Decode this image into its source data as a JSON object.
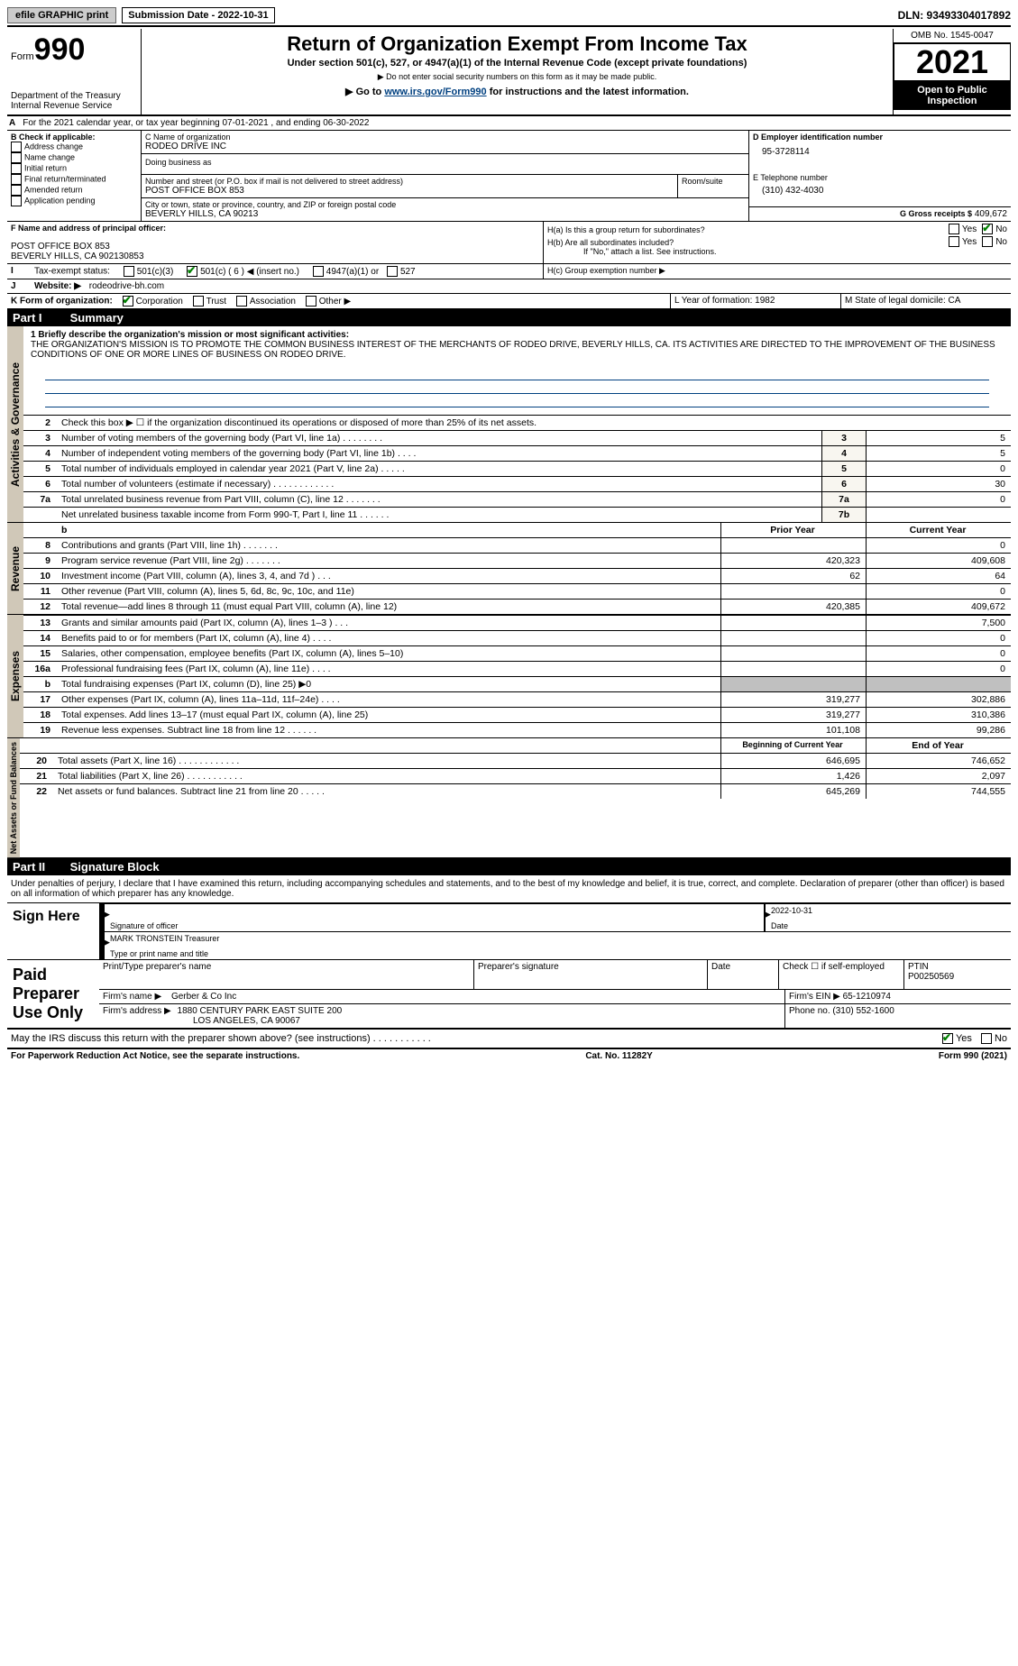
{
  "topbar": {
    "efile": "efile GRAPHIC print",
    "submission_label": "Submission Date - 2022-10-31",
    "dln": "DLN: 93493304017892"
  },
  "header": {
    "form_word": "Form",
    "form_no": "990",
    "dept": "Department of the Treasury",
    "irs": "Internal Revenue Service",
    "title": "Return of Organization Exempt From Income Tax",
    "subtitle": "Under section 501(c), 527, or 4947(a)(1) of the Internal Revenue Code (except private foundations)",
    "note1": "▶ Do not enter social security numbers on this form as it may be made public.",
    "note2_prefix": "▶ Go to ",
    "note2_link": "www.irs.gov/Form990",
    "note2_suffix": " for instructions and the latest information.",
    "omb": "OMB No. 1545-0047",
    "year": "2021",
    "open": "Open to Public Inspection"
  },
  "A": {
    "text": "For the 2021 calendar year, or tax year beginning 07-01-2021    , and ending 06-30-2022"
  },
  "B": {
    "label": "B Check if applicable:",
    "items": [
      "Address change",
      "Name change",
      "Initial return",
      "Final return/terminated",
      "Amended return",
      "Application pending"
    ]
  },
  "C": {
    "name_label": "C Name of organization",
    "org_name": "RODEO DRIVE INC",
    "dba_label": "Doing business as",
    "addr_label": "Number and street (or P.O. box if mail is not delivered to street address)",
    "room_label": "Room/suite",
    "addr": "POST OFFICE BOX 853",
    "city_label": "City or town, state or province, country, and ZIP or foreign postal code",
    "city": "BEVERLY HILLS, CA  90213"
  },
  "D": {
    "label": "D Employer identification number",
    "value": "95-3728114"
  },
  "E": {
    "label": "E Telephone number",
    "value": "(310) 432-4030"
  },
  "G": {
    "label": "G Gross receipts $",
    "value": "409,672"
  },
  "F": {
    "label": "F Name and address of principal officer:",
    "line1": "POST OFFICE BOX 853",
    "line2": "BEVERLY HILLS, CA  902130853"
  },
  "H": {
    "a_label": "H(a)  Is this a group return for subordinates?",
    "b_label": "H(b)  Are all subordinates included?",
    "b_note": "If \"No,\" attach a list. See instructions.",
    "c_label": "H(c)  Group exemption number ▶",
    "yes": "Yes",
    "no": "No"
  },
  "I": {
    "label": "Tax-exempt status:",
    "o1": "501(c)(3)",
    "o2": "501(c) ( 6 ) ◀ (insert no.)",
    "o3": "4947(a)(1) or",
    "o4": "527"
  },
  "J": {
    "label": "Website: ▶",
    "value": "rodeodrive-bh.com"
  },
  "K": {
    "label": "K Form of organization:",
    "opts": [
      "Corporation",
      "Trust",
      "Association",
      "Other ▶"
    ]
  },
  "L": {
    "label": "L Year of formation: 1982"
  },
  "M": {
    "label": "M State of legal domicile: CA"
  },
  "partI": {
    "part": "Part I",
    "title": "Summary"
  },
  "partII": {
    "part": "Part II",
    "title": "Signature Block"
  },
  "summary": {
    "l1_label": "1 Briefly describe the organization's mission or most significant activities:",
    "mission": "THE ORGANIZATION'S MISSION IS TO PROMOTE THE COMMON BUSINESS INTEREST OF THE MERCHANTS OF RODEO DRIVE, BEVERLY HILLS, CA. ITS ACTIVITIES ARE DIRECTED TO THE IMPROVEMENT OF THE BUSINESS CONDITIONS OF ONE OR MORE LINES OF BUSINESS ON RODEO DRIVE.",
    "l2": "Check this box ▶ ☐ if the organization discontinued its operations or disposed of more than 25% of its net assets.",
    "lines_gov": [
      {
        "n": "3",
        "d": "Number of voting members of the governing body (Part VI, line 1a)   .   .   .   .   .   .   .   .",
        "box": "3",
        "v": "5"
      },
      {
        "n": "4",
        "d": "Number of independent voting members of the governing body (Part VI, line 1b)   .   .   .   .",
        "box": "4",
        "v": "5"
      },
      {
        "n": "5",
        "d": "Total number of individuals employed in calendar year 2021 (Part V, line 2a)   .   .   .   .   .",
        "box": "5",
        "v": "0"
      },
      {
        "n": "6",
        "d": "Total number of volunteers (estimate if necessary)   .   .   .   .   .   .   .   .   .   .   .   .",
        "box": "6",
        "v": "30"
      },
      {
        "n": "7a",
        "d": "Total unrelated business revenue from Part VIII, column (C), line 12   .   .   .   .   .   .   .",
        "box": "7a",
        "v": "0"
      },
      {
        "n": "",
        "d": "Net unrelated business taxable income from Form 990-T, Part I, line 11   .   .   .   .   .   .",
        "box": "7b",
        "v": ""
      }
    ],
    "b_hdr": "b",
    "prior": "Prior Year",
    "current": "Current Year",
    "lines_rev": [
      {
        "n": "8",
        "d": "Contributions and grants (Part VIII, line 1h)   .   .   .   .   .   .   .",
        "p": "",
        "c": "0"
      },
      {
        "n": "9",
        "d": "Program service revenue (Part VIII, line 2g)   .   .   .   .   .   .   .",
        "p": "420,323",
        "c": "409,608"
      },
      {
        "n": "10",
        "d": "Investment income (Part VIII, column (A), lines 3, 4, and 7d )   .   .   .",
        "p": "62",
        "c": "64"
      },
      {
        "n": "11",
        "d": "Other revenue (Part VIII, column (A), lines 5, 6d, 8c, 9c, 10c, and 11e)",
        "p": "",
        "c": "0"
      },
      {
        "n": "12",
        "d": "Total revenue—add lines 8 through 11 (must equal Part VIII, column (A), line 12)",
        "p": "420,385",
        "c": "409,672"
      }
    ],
    "lines_exp": [
      {
        "n": "13",
        "d": "Grants and similar amounts paid (Part IX, column (A), lines 1–3 )   .   .   .",
        "p": "",
        "c": "7,500"
      },
      {
        "n": "14",
        "d": "Benefits paid to or for members (Part IX, column (A), line 4)   .   .   .   .",
        "p": "",
        "c": "0"
      },
      {
        "n": "15",
        "d": "Salaries, other compensation, employee benefits (Part IX, column (A), lines 5–10)",
        "p": "",
        "c": "0"
      },
      {
        "n": "16a",
        "d": "Professional fundraising fees (Part IX, column (A), line 11e)   .   .   .   .",
        "p": "",
        "c": "0"
      },
      {
        "n": "b",
        "d": "Total fundraising expenses (Part IX, column (D), line 25) ▶0",
        "p": "GRAY",
        "c": "GRAY"
      },
      {
        "n": "17",
        "d": "Other expenses (Part IX, column (A), lines 11a–11d, 11f–24e)   .   .   .   .",
        "p": "319,277",
        "c": "302,886"
      },
      {
        "n": "18",
        "d": "Total expenses. Add lines 13–17 (must equal Part IX, column (A), line 25)",
        "p": "319,277",
        "c": "310,386"
      },
      {
        "n": "19",
        "d": "Revenue less expenses. Subtract line 18 from line 12   .   .   .   .   .   .",
        "p": "101,108",
        "c": "99,286"
      }
    ],
    "begin": "Beginning of Current Year",
    "end": "End of Year",
    "lines_net": [
      {
        "n": "20",
        "d": "Total assets (Part X, line 16)   .   .   .   .   .   .   .   .   .   .   .   .",
        "p": "646,695",
        "c": "746,652"
      },
      {
        "n": "21",
        "d": "Total liabilities (Part X, line 26)   .   .   .   .   .   .   .   .   .   .   .",
        "p": "1,426",
        "c": "2,097"
      },
      {
        "n": "22",
        "d": "Net assets or fund balances. Subtract line 21 from line 20   .   .   .   .   .",
        "p": "645,269",
        "c": "744,555"
      }
    ],
    "vlabels": {
      "gov": "Activities & Governance",
      "rev": "Revenue",
      "exp": "Expenses",
      "net": "Net Assets or Fund Balances"
    }
  },
  "sig": {
    "penalties": "Under penalties of perjury, I declare that I have examined this return, including accompanying schedules and statements, and to the best of my knowledge and belief, it is true, correct, and complete. Declaration of preparer (other than officer) is based on all information of which preparer has any knowledge.",
    "sign_here": "Sign Here",
    "sig_date": "2022-10-31",
    "sig_officer": "Signature of officer",
    "date": "Date",
    "name_title": "MARK TRONSTEIN  Treasurer",
    "name_title_label": "Type or print name and title",
    "paid": "Paid Preparer Use Only",
    "print_name": "Print/Type preparer's name",
    "prep_sig": "Preparer's signature",
    "check_self": "Check ☐ if self-employed",
    "ptin_label": "PTIN",
    "ptin": "P00250569",
    "firm_name_label": "Firm's name    ▶",
    "firm_name": "Gerber & Co Inc",
    "firm_ein_label": "Firm's EIN ▶",
    "firm_ein": "65-1210974",
    "firm_addr_label": "Firm's address ▶",
    "firm_addr1": "1880 CENTURY PARK EAST SUITE 200",
    "firm_addr2": "LOS ANGELES, CA  90067",
    "phone_label": "Phone no.",
    "phone": "(310) 552-1600",
    "discuss": "May the IRS discuss this return with the preparer shown above? (see instructions)   .   .   .   .   .   .   .   .   .   .   .",
    "paperwork": "For Paperwork Reduction Act Notice, see the separate instructions.",
    "cat": "Cat. No. 11282Y",
    "form_foot": "Form 990 (2021)"
  }
}
